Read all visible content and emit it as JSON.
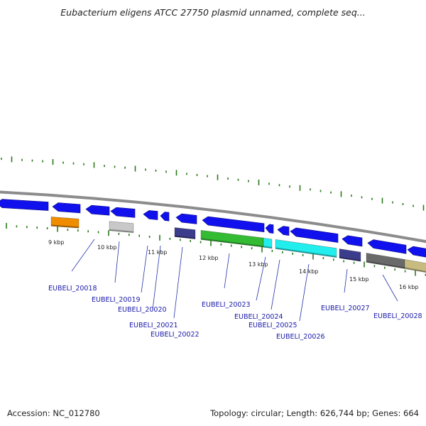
{
  "title": "Eubacterium eligens ATCC 27750 plasmid unnamed, complete seq...",
  "colors": {
    "backbone": "#8c8c8c",
    "forward_gene": "#1111ee",
    "tick": "#2a7a1a",
    "label_line": "#2233aa",
    "label_text": "#1a1aa8"
  },
  "kbp_labels": [
    "9 kbp",
    "10 kbp",
    "11 kbp",
    "12 kbp",
    "13 kbp",
    "14 kbp",
    "15 kbp",
    "16 kbp"
  ],
  "gene_labels": [
    "EUBELI_20018",
    "EUBELI_20019",
    "EUBELI_20020",
    "EUBELI_20021",
    "EUBELI_20022",
    "EUBELI_20023",
    "EUBELI_20024",
    "EUBELI_20025",
    "EUBELI_20026",
    "EUBELI_20027",
    "EUBELI_20028"
  ],
  "feature_colors": {
    "orange": "#f08c00",
    "silver": "#c8c8c8",
    "slate": "#3c3c8c",
    "green": "#33bb33",
    "cyan": "#22eeee",
    "dark_gray": "#6a6a6a",
    "khaki": "#c8bb80"
  },
  "footer": {
    "accession": "Accession: NC_012780",
    "summary": "Topology: circular; Length: 626,744 bp; Genes: 664"
  }
}
